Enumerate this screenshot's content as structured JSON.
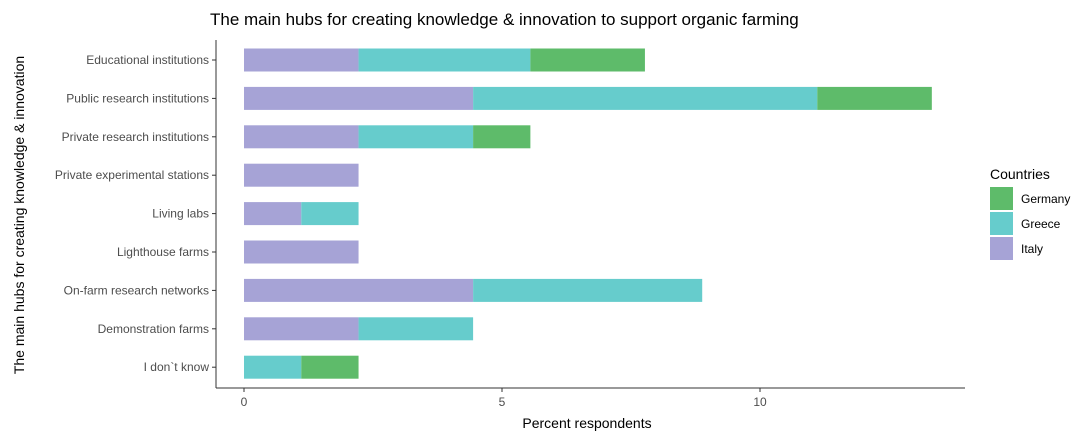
{
  "chart_data": {
    "type": "bar",
    "orientation": "horizontal",
    "stacked": true,
    "title": "The main hubs for creating knowledge & innovation to support organic farming",
    "xlabel": "Percent respondents",
    "ylabel": "The main hubs for creating knowledge & innovation",
    "xlim": [
      0,
      14
    ],
    "xticks": [
      0,
      5,
      10
    ],
    "grid": false,
    "legend_position": "right",
    "legend_title": "Countries",
    "categories": [
      "Educational institutions",
      "Public research institutions",
      "Private research institutions",
      "Private experimental stations",
      "Living labs",
      "Lighthouse farms",
      "On-farm research networks",
      "Demonstration farms",
      "I don`t know"
    ],
    "series": [
      {
        "name": "Italy",
        "color": "#a6a3d6",
        "values": [
          2.22,
          4.44,
          2.22,
          2.22,
          1.11,
          2.22,
          4.44,
          2.22,
          0
        ]
      },
      {
        "name": "Greece",
        "color": "#66cccc",
        "values": [
          3.33,
          6.67,
          2.22,
          0,
          1.11,
          0,
          4.44,
          2.22,
          1.11
        ]
      },
      {
        "name": "Germany",
        "color": "#5ebb6a",
        "values": [
          2.22,
          2.22,
          1.11,
          0,
          0,
          0,
          0,
          0,
          1.11
        ]
      }
    ],
    "legend_order": [
      "Germany",
      "Greece",
      "Italy"
    ]
  }
}
